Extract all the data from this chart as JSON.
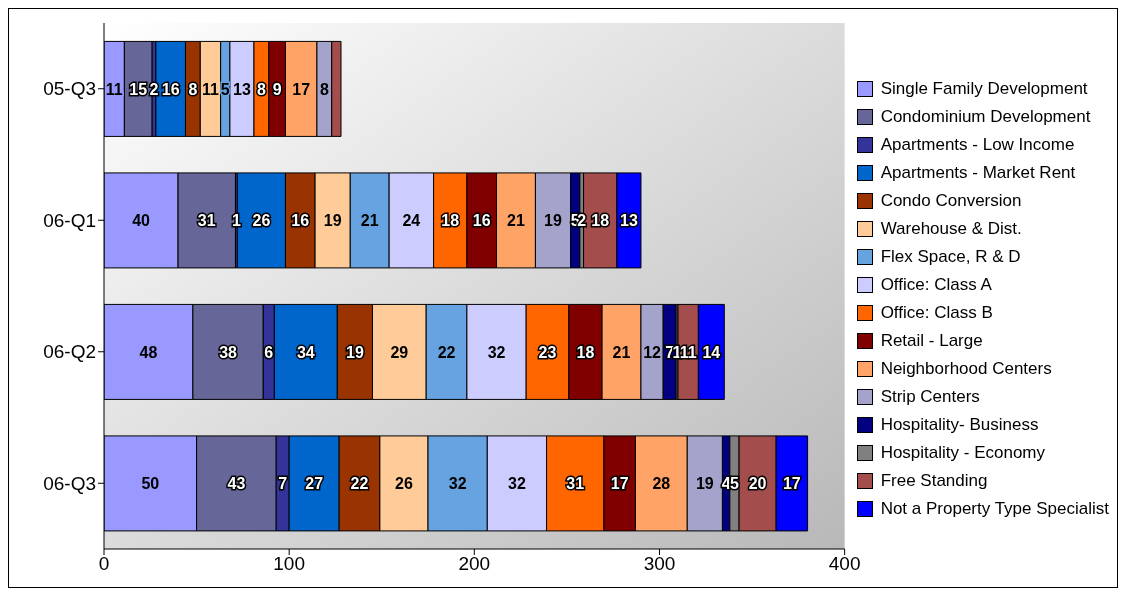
{
  "chart_data": {
    "type": "bar",
    "orientation": "horizontal",
    "stacked": true,
    "legend": "right",
    "grid": false,
    "categories": [
      "05-Q3",
      "06-Q1",
      "06-Q2",
      "06-Q3"
    ],
    "xlim": [
      0,
      400
    ],
    "xticks": [
      0,
      100,
      200,
      300,
      400
    ],
    "series": [
      {
        "name": "Single Family Development",
        "color": "#9999ff",
        "values": [
          11,
          40,
          48,
          50
        ],
        "value_labels": [
          "11",
          "40",
          "48",
          "50"
        ]
      },
      {
        "name": "Condominium Development",
        "color": "#666699",
        "values": [
          15,
          31,
          38,
          43
        ],
        "value_labels": [
          "15",
          "31",
          "38",
          "43"
        ]
      },
      {
        "name": "Apartments - Low Income",
        "color": "#333399",
        "values": [
          2,
          1,
          6,
          7
        ],
        "value_labels": [
          "2",
          "1",
          "6",
          "7"
        ]
      },
      {
        "name": "Apartments - Market Rent",
        "color": "#0066cc",
        "values": [
          16,
          26,
          34,
          27
        ],
        "value_labels": [
          "16",
          "26",
          "34",
          "27"
        ]
      },
      {
        "name": "Condo Conversion",
        "color": "#993300",
        "values": [
          8,
          16,
          19,
          22
        ],
        "value_labels": [
          "8",
          "16",
          "19",
          "22"
        ]
      },
      {
        "name": "Warehouse & Dist.",
        "color": "#ffcc99",
        "values": [
          11,
          19,
          29,
          26
        ],
        "value_labels": [
          "11",
          "19",
          "29",
          "26"
        ]
      },
      {
        "name": "Flex Space, R & D",
        "color": "#66a3e0",
        "values": [
          5,
          21,
          22,
          32
        ],
        "value_labels": [
          "5",
          "21",
          "22",
          "32"
        ]
      },
      {
        "name": "Office: Class A",
        "color": "#ccccff",
        "values": [
          13,
          24,
          32,
          32
        ],
        "value_labels": [
          "13",
          "24",
          "32",
          "32"
        ]
      },
      {
        "name": "Office: Class B",
        "color": "#ff6600",
        "values": [
          8,
          18,
          23,
          31
        ],
        "value_labels": [
          "8",
          "18",
          "23",
          "31"
        ]
      },
      {
        "name": "Retail - Large",
        "color": "#800000",
        "values": [
          9,
          16,
          18,
          17
        ],
        "value_labels": [
          "9",
          "16",
          "18",
          "17"
        ]
      },
      {
        "name": "Neighborhood Centers",
        "color": "#ffa366",
        "values": [
          17,
          21,
          21,
          28
        ],
        "value_labels": [
          "17",
          "21",
          "21",
          "28"
        ]
      },
      {
        "name": "Strip Centers",
        "color": "#a3a3cc",
        "values": [
          8,
          19,
          12,
          19
        ],
        "value_labels": [
          "8",
          "19",
          "12",
          "19"
        ]
      },
      {
        "name": "Hospitality- Business",
        "color": "#000080",
        "values": [
          0,
          5,
          7,
          4
        ],
        "value_labels": [
          null,
          "5",
          "7",
          "4"
        ]
      },
      {
        "name": "Hospitality - Economy",
        "color": "#808080",
        "values": [
          0,
          2,
          1,
          5
        ],
        "value_labels": [
          null,
          "2",
          "1",
          "5"
        ]
      },
      {
        "name": "Free Standing",
        "color": "#a34d4d",
        "values": [
          5,
          18,
          11,
          20
        ],
        "value_labels": [
          null,
          "18",
          "11",
          "20"
        ]
      },
      {
        "name": "Not a Property Type Specialist",
        "color": "#0000ff",
        "values": [
          0,
          13,
          14,
          17
        ],
        "value_labels": [
          null,
          "13",
          "14",
          "17"
        ]
      }
    ]
  }
}
